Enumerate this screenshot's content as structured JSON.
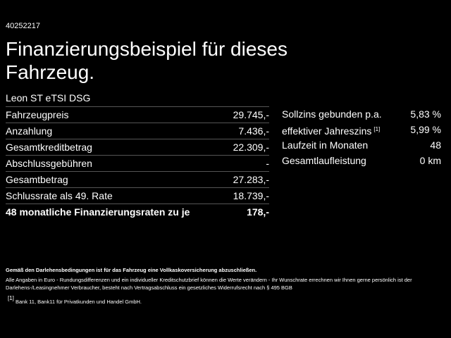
{
  "page_id": "40252217",
  "title": "Finanzierungsbeispiel für dieses Fahrzeug.",
  "model": "Leon ST eTSI DSG",
  "left_table": {
    "rows": [
      {
        "label": "Fahrzeugpreis",
        "value": "29.745,-"
      },
      {
        "label": "Anzahlung",
        "value": "7.436,-"
      },
      {
        "label": "Gesamtkreditbetrag",
        "value": "22.309,-"
      },
      {
        "label": "Abschlussgebühren",
        "value": "-"
      },
      {
        "label": "Gesamtbetrag",
        "value": "27.283,-"
      },
      {
        "label": "Schlussrate als 49. Rate",
        "value": "18.739,-"
      },
      {
        "label": "48 monatliche Finanzierungsraten zu je",
        "value": "178,-"
      }
    ]
  },
  "right_table": {
    "rows": [
      {
        "label": "Sollzins gebunden p.a.",
        "value": "5,83 %"
      },
      {
        "label": "effektiver Jahreszins",
        "note": "[1]",
        "value": "5,99 %"
      },
      {
        "label": "Laufzeit in Monaten",
        "value": "48"
      },
      {
        "label": "Gesamtlaufleistung",
        "value": "0 km"
      }
    ]
  },
  "footer": {
    "insurance_note": "Gemäß den Darlehensbedingungen ist für das Fahrzeug eine Vollkaskoversicherung abzuschließen.",
    "disclaimer": "Alle Angaben in Euro - Rundungsdifferenzen und ein individueller Kreditschutzbrief können die Werte verändern - Ihr Wunschrate errechnen wir Ihnen gerne persönlich ist der Darlehens-/Leasingnehmer Verbraucher, besteht nach Vertragsabschluss ein gesetzliches Widerrufsrecht nach § 495 BGB",
    "footnote_mark": "[1]",
    "footnote_text": "Bank 11, Bank11 für Privatkunden und Handel GmbH."
  }
}
